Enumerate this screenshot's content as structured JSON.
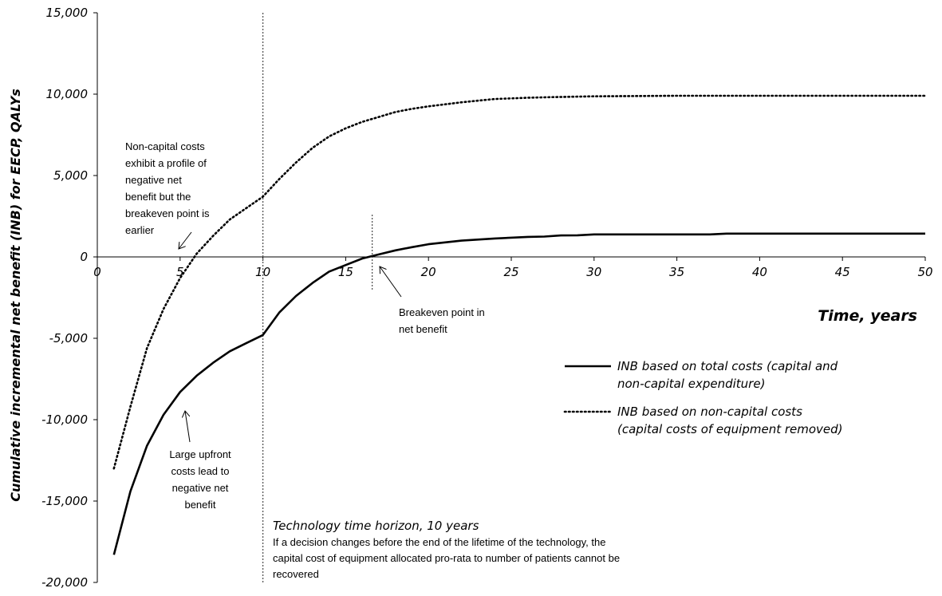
{
  "chart_data": {
    "type": "line",
    "xlabel": "Time, years",
    "ylabel": "Cumulative incremental net benefit (INB) for EECP, QALYs",
    "xlim": [
      0,
      50
    ],
    "ylim": [
      -20000,
      15000
    ],
    "x_ticks": [
      0,
      5,
      10,
      15,
      20,
      25,
      30,
      35,
      40,
      45,
      50
    ],
    "y_ticks": [
      15000,
      10000,
      5000,
      0,
      -5000,
      -10000,
      -15000,
      -20000
    ],
    "x_tick_labels": [
      "0",
      "5",
      "10",
      "15",
      "20",
      "25",
      "30",
      "35",
      "40",
      "45",
      "50"
    ],
    "y_tick_labels": [
      "15,000",
      "10,000",
      "5,000",
      "0",
      "-5,000",
      "-10,000",
      "-15,000",
      "-20,000"
    ],
    "grid": false,
    "legend_position": "right",
    "series": [
      {
        "name": "INB based on total costs (capital and non-capital expenditure)",
        "name_lines": [
          "INB based on total costs (capital and",
          "non-capital expenditure)"
        ],
        "style": "solid",
        "points": [
          [
            1,
            -18300
          ],
          [
            2,
            -14400
          ],
          [
            3,
            -11600
          ],
          [
            4,
            -9700
          ],
          [
            5,
            -8300
          ],
          [
            6,
            -7300
          ],
          [
            7,
            -6500
          ],
          [
            8,
            -5800
          ],
          [
            9,
            -5300
          ],
          [
            10,
            -4800
          ],
          [
            11,
            -3400
          ],
          [
            12,
            -2400
          ],
          [
            13,
            -1600
          ],
          [
            14,
            -900
          ],
          [
            15,
            -500
          ],
          [
            16,
            -100
          ],
          [
            17,
            150
          ],
          [
            18,
            400
          ],
          [
            19,
            600
          ],
          [
            20,
            780
          ],
          [
            22,
            1000
          ],
          [
            24,
            1130
          ],
          [
            26,
            1230
          ],
          [
            27,
            1250
          ],
          [
            28,
            1320
          ],
          [
            29,
            1330
          ],
          [
            30,
            1380
          ],
          [
            32,
            1380
          ],
          [
            34,
            1380
          ],
          [
            36,
            1380
          ],
          [
            37,
            1380
          ],
          [
            38,
            1430
          ],
          [
            40,
            1430
          ],
          [
            42,
            1430
          ],
          [
            44,
            1430
          ],
          [
            46,
            1430
          ],
          [
            48,
            1430
          ],
          [
            50,
            1430
          ]
        ]
      },
      {
        "name": "INB based on non-capital costs (capital costs of equipment removed)",
        "name_lines": [
          "INB based on non-capital costs",
          "(capital costs of equipment removed)"
        ],
        "style": "dotted",
        "points": [
          [
            1,
            -13000
          ],
          [
            2,
            -9200
          ],
          [
            3,
            -5600
          ],
          [
            4,
            -3200
          ],
          [
            5,
            -1300
          ],
          [
            6,
            200
          ],
          [
            7,
            1300
          ],
          [
            8,
            2300
          ],
          [
            9,
            3000
          ],
          [
            10,
            3700
          ],
          [
            11,
            4800
          ],
          [
            12,
            5800
          ],
          [
            13,
            6700
          ],
          [
            14,
            7400
          ],
          [
            15,
            7900
          ],
          [
            16,
            8300
          ],
          [
            17,
            8600
          ],
          [
            18,
            8900
          ],
          [
            19,
            9100
          ],
          [
            20,
            9250
          ],
          [
            22,
            9500
          ],
          [
            24,
            9700
          ],
          [
            26,
            9780
          ],
          [
            28,
            9830
          ],
          [
            30,
            9870
          ],
          [
            35,
            9900
          ],
          [
            40,
            9900
          ],
          [
            45,
            9900
          ],
          [
            50,
            9900
          ]
        ]
      }
    ],
    "vertical_markers": [
      {
        "x": 10,
        "y_from": -20000,
        "y_to": 15000
      },
      {
        "x": 16.6,
        "y_from": -2100,
        "y_to": 2600
      }
    ],
    "annotations": [
      {
        "lines": [
          "Non-capital costs",
          "exhibit a profile of",
          "negative net",
          "benefit but the",
          "breakeven point is",
          "earlier"
        ]
      },
      {
        "lines": [
          "Breakeven point in",
          "net benefit"
        ]
      },
      {
        "lines": [
          "Large upfront",
          "costs lead to",
          "negative net",
          "benefit"
        ]
      }
    ],
    "horizon_note": {
      "title": "Technology time horizon, 10 years",
      "lines": [
        "If a decision changes before the end of the lifetime of the technology, the",
        "capital cost of equipment allocated pro-rata to number of patients cannot be",
        "recovered"
      ]
    }
  }
}
